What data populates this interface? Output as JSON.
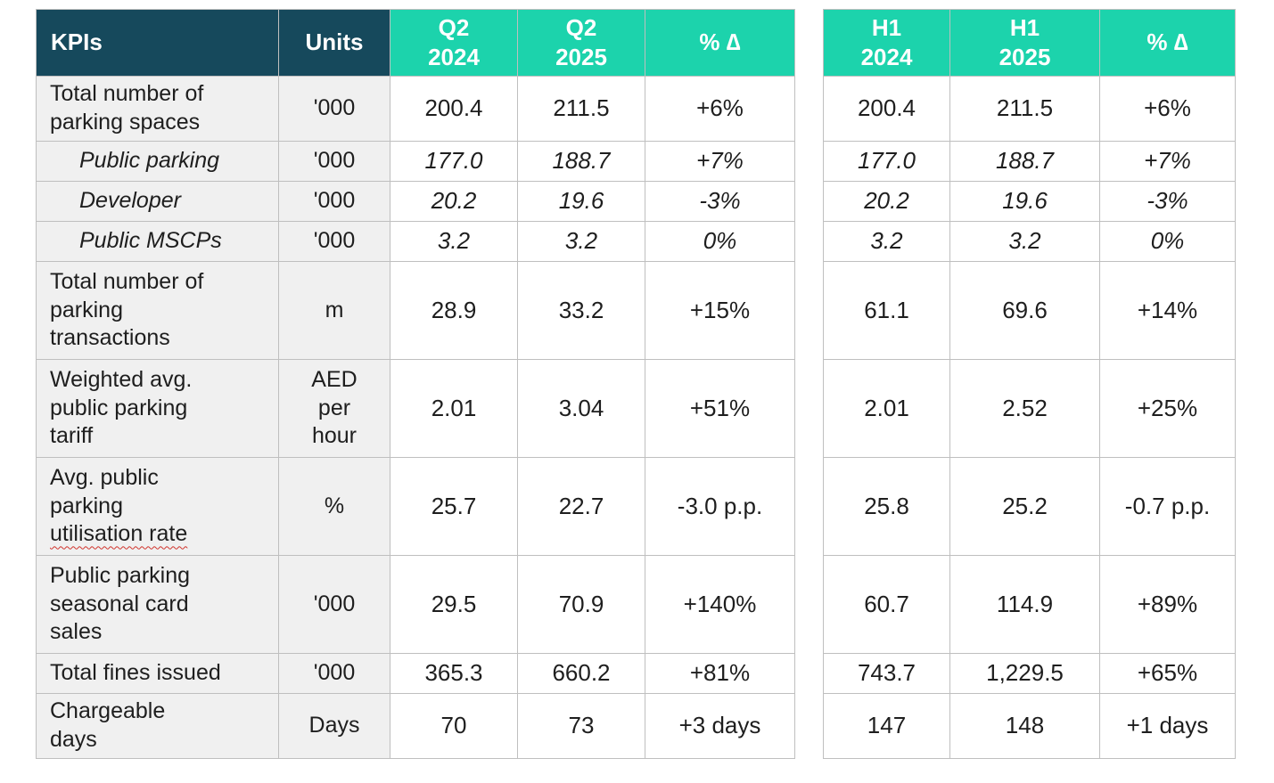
{
  "colors": {
    "header_dark": "#16495C",
    "header_teal": "#1CD3AC",
    "row_gray": "#F0F0F0",
    "border": "#BFBFBF",
    "text": "#1E1E1E",
    "header_text": "#FFFFFF",
    "squiggle_red": "#D0342C"
  },
  "left_table": {
    "header": {
      "kpis": "KPIs",
      "units": "Units",
      "period_1": "Q2\n2024",
      "period_2": "Q2\n2025",
      "delta": "% ∆"
    }
  },
  "right_table": {
    "header": {
      "period_1": "H1\n2024",
      "period_2": "H1\n2025",
      "delta": "% ∆"
    }
  },
  "rows": [
    {
      "kpi": "Total number of\nparking spaces",
      "unit": "'000",
      "q_2024": "200.4",
      "q_2025": "211.5",
      "q_delta": "+6%",
      "h_2024": "200.4",
      "h_2025": "211.5",
      "h_delta": "+6%"
    },
    {
      "kpi": "Public parking",
      "unit": "'000",
      "q_2024": "177.0",
      "q_2025": "188.7",
      "q_delta": "+7%",
      "h_2024": "177.0",
      "h_2025": "188.7",
      "h_delta": "+7%"
    },
    {
      "kpi": "Developer",
      "unit": "'000",
      "q_2024": "20.2",
      "q_2025": "19.6",
      "q_delta": "-3%",
      "h_2024": "20.2",
      "h_2025": "19.6",
      "h_delta": "-3%"
    },
    {
      "kpi": "Public MSCPs",
      "unit": "'000",
      "q_2024": "3.2",
      "q_2025": "3.2",
      "q_delta": "0%",
      "h_2024": "3.2",
      "h_2025": "3.2",
      "h_delta": "0%"
    },
    {
      "kpi": "Total number of\nparking\ntransactions",
      "unit": "m",
      "q_2024": "28.9",
      "q_2025": "33.2",
      "q_delta": "+15%",
      "h_2024": "61.1",
      "h_2025": "69.6",
      "h_delta": "+14%"
    },
    {
      "kpi": "Weighted avg.\npublic parking\ntariff",
      "unit": "AED\nper\nhour",
      "q_2024": "2.01",
      "q_2025": "3.04",
      "q_delta": "+51%",
      "h_2024": "2.01",
      "h_2025": "2.52",
      "h_delta": "+25%"
    },
    {
      "kpi_head": "Avg. public\nparking\n",
      "kpi_tail": "utilisation rate",
      "unit": "%",
      "q_2024": "25.7",
      "q_2025": "22.7",
      "q_delta": "-3.0 p.p.",
      "h_2024": "25.8",
      "h_2025": "25.2",
      "h_delta": "-0.7 p.p."
    },
    {
      "kpi": "Public parking\nseasonal card\nsales",
      "unit": "'000",
      "q_2024": "29.5",
      "q_2025": "70.9",
      "q_delta": "+140%",
      "h_2024": "60.7",
      "h_2025": "114.9",
      "h_delta": "+89%"
    },
    {
      "kpi": "Total fines issued",
      "unit": "'000",
      "q_2024": "365.3",
      "q_2025": "660.2",
      "q_delta": "+81%",
      "h_2024": "743.7",
      "h_2025": "1,229.5",
      "h_delta": "+65%"
    },
    {
      "kpi": "Chargeable\ndays",
      "unit": "Days",
      "q_2024": "70",
      "q_2025": "73",
      "q_delta": "+3 days",
      "h_2024": "147",
      "h_2025": "148",
      "h_delta": "+1 days"
    }
  ]
}
